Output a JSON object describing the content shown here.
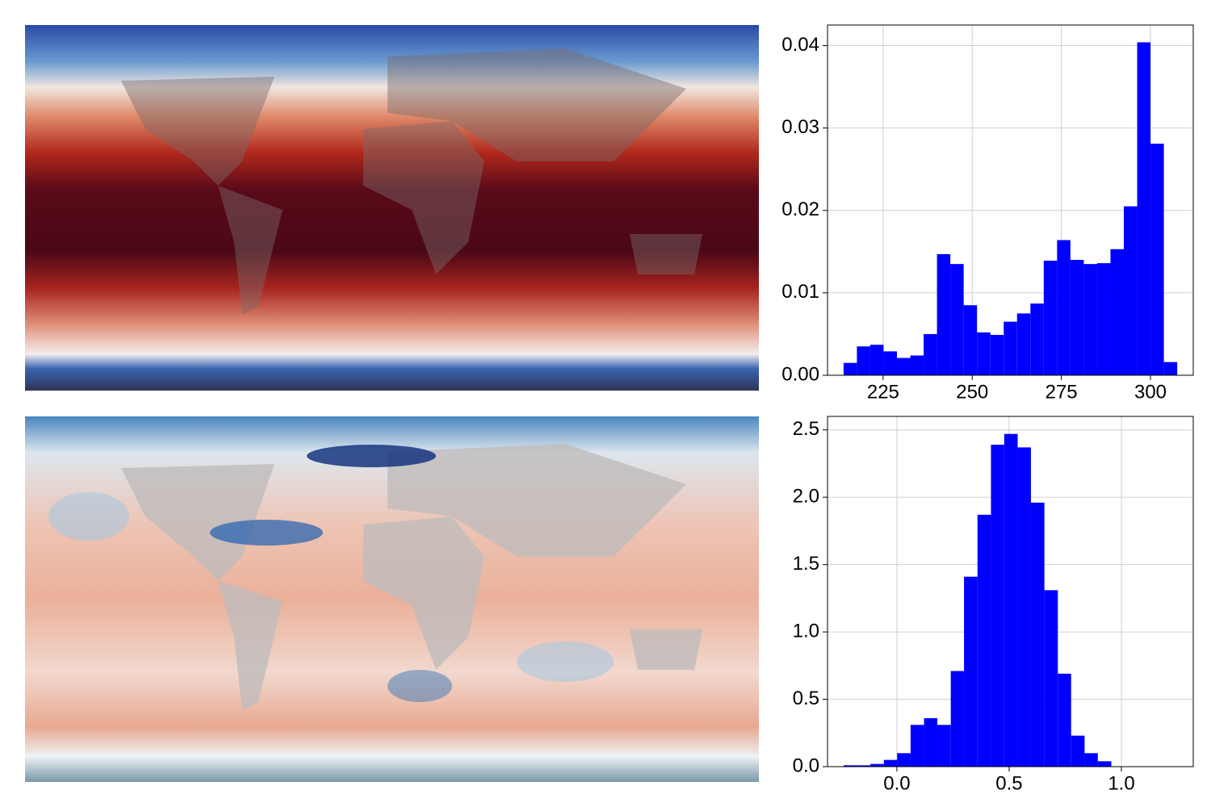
{
  "chart_data": [
    {
      "type": "histogram",
      "color": "#0000ff",
      "grid": true,
      "bins": [
        213.9,
        217.64,
        221.39,
        225.13,
        228.88,
        232.62,
        236.36,
        240.11,
        243.85,
        247.6,
        251.34,
        255.08,
        258.83,
        262.57,
        266.32,
        270.06,
        273.8,
        277.55,
        281.29,
        285.04,
        288.78,
        292.52,
        296.27,
        300.01,
        303.76,
        307.5
      ],
      "values": [
        0.0015,
        0.0035,
        0.0037,
        0.0029,
        0.0021,
        0.0024,
        0.005,
        0.0147,
        0.0135,
        0.0085,
        0.0052,
        0.0049,
        0.0065,
        0.0075,
        0.0087,
        0.0139,
        0.0164,
        0.014,
        0.0135,
        0.0136,
        0.0153,
        0.0205,
        0.0404,
        0.0281,
        0.0016
      ],
      "xlim": [
        209.4,
        312
      ],
      "xticks": [
        225,
        250,
        275,
        300
      ],
      "ylim": [
        0,
        0.0425
      ],
      "yticks": [
        {
          "value": 0,
          "label": "0.00"
        },
        {
          "value": 0.01,
          "label": "0.01"
        },
        {
          "value": 0.02,
          "label": "0.02"
        },
        {
          "value": 0.03,
          "label": "0.03"
        },
        {
          "value": 0.04,
          "label": "0.04"
        }
      ]
    },
    {
      "type": "histogram",
      "color": "#0000ff",
      "grid": true,
      "bins": [
        -0.237,
        -0.177,
        -0.118,
        -0.058,
        0.001,
        0.061,
        0.121,
        0.18,
        0.24,
        0.299,
        0.359,
        0.419,
        0.478,
        0.538,
        0.597,
        0.657,
        0.717,
        0.776,
        0.836,
        0.895,
        0.955,
        1.015,
        1.074,
        1.134,
        1.193,
        1.253
      ],
      "values": [
        0.01,
        0.01,
        0.02,
        0.05,
        0.1,
        0.31,
        0.36,
        0.31,
        0.71,
        1.41,
        1.87,
        2.39,
        2.47,
        2.37,
        1.96,
        1.31,
        0.69,
        0.23,
        0.1,
        0.04,
        0,
        0,
        0,
        0,
        0
      ],
      "xlim": [
        -0.309,
        1.32
      ],
      "xticks": [
        {
          "value": 0,
          "label": "0.0"
        },
        {
          "value": 0.5,
          "label": "0.5"
        },
        {
          "value": 1,
          "label": "1.0"
        }
      ],
      "ylim": [
        0,
        2.6
      ],
      "yticks": [
        {
          "value": 0,
          "label": "0.0"
        },
        {
          "value": 0.5,
          "label": "0.5"
        },
        {
          "value": 1,
          "label": "1.0"
        },
        {
          "value": 1.5,
          "label": "1.5"
        },
        {
          "value": 2,
          "label": "2.0"
        },
        {
          "value": 2.5,
          "label": "2.5"
        }
      ]
    }
  ]
}
